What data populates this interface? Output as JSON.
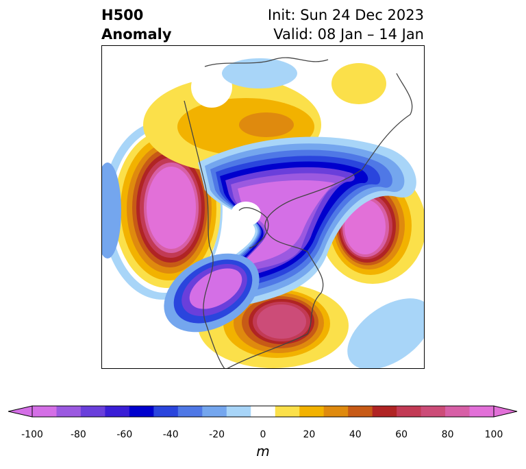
{
  "title": {
    "left_line1": "H500",
    "left_line2": "Anomaly",
    "right_line1": "Init: Sun 24 Dec 2023",
    "right_line2": "Valid: 08 Jan – 14 Jan"
  },
  "colorbar": {
    "unit": "m",
    "ticks": [
      "-100",
      "-80",
      "-60",
      "-40",
      "-20",
      "0",
      "20",
      "40",
      "60",
      "80",
      "100"
    ],
    "levels": [
      -100,
      -90,
      -80,
      -70,
      -60,
      -50,
      -40,
      -30,
      -20,
      -10,
      10,
      20,
      30,
      40,
      50,
      60,
      70,
      80,
      90,
      100
    ],
    "colors": [
      "#d46fe6",
      "#9b59e0",
      "#6a3fdb",
      "#3a1ed6",
      "#0000cd",
      "#2a45dd",
      "#4f78e6",
      "#74a6ee",
      "#a8d5f8",
      "#ffffff",
      "#fbe04a",
      "#f2b200",
      "#df8a0e",
      "#c75a16",
      "#b02424",
      "#c23a55",
      "#cc4c78",
      "#d75fa6",
      "#e270d8"
    ],
    "under_color": "#d46fe6",
    "over_color": "#e270d8"
  },
  "map": {
    "projection": "north-polar-stereographic",
    "variable": "500 hPa geopotential height anomaly",
    "features": [
      "coastlines",
      "country borders",
      "state/province borders"
    ]
  }
}
